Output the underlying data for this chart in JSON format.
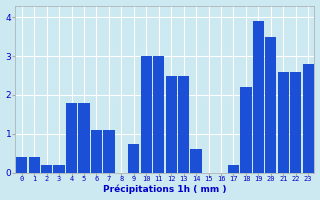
{
  "hours": [
    0,
    1,
    2,
    3,
    4,
    5,
    6,
    7,
    8,
    9,
    10,
    11,
    12,
    13,
    14,
    15,
    16,
    17,
    18,
    19,
    20,
    21,
    22,
    23
  ],
  "heights": [
    0.4,
    0.4,
    0.2,
    0.2,
    1.8,
    1.8,
    1.1,
    1.1,
    0.0,
    0.75,
    3.0,
    3.0,
    2.5,
    2.5,
    0.6,
    0.0,
    0.0,
    0.2,
    2.2,
    3.9,
    3.5,
    2.6,
    2.6,
    2.8
  ],
  "bar_color": "#1a4fd6",
  "bg_color": "#cce8f0",
  "grid_color": "#ffffff",
  "text_color": "#0000cc",
  "xlabel": "Précipitations 1h ( mm )",
  "ylim": [
    0,
    4.3
  ],
  "yticks": [
    0,
    1,
    2,
    3,
    4
  ],
  "xlim": [
    -0.5,
    23.5
  ]
}
